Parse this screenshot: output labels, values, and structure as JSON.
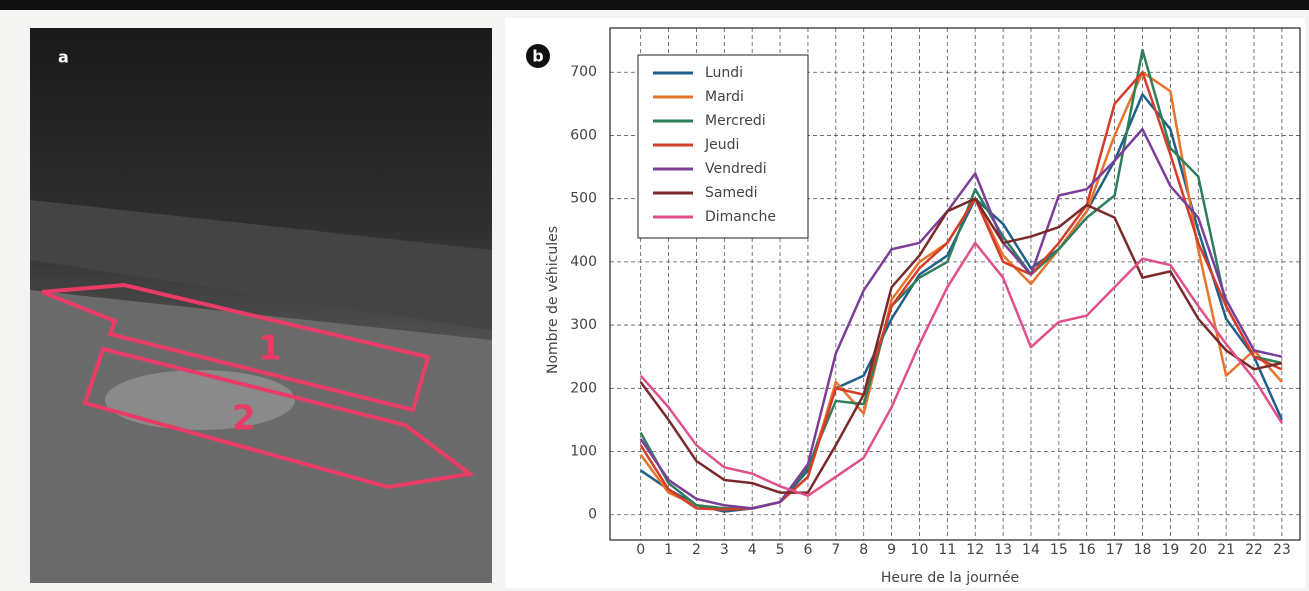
{
  "panel_a": {
    "label": "a",
    "zones": [
      "1",
      "2"
    ]
  },
  "chart_data": {
    "type": "line",
    "panel_label": "b",
    "x_label": "Heure de la journée",
    "y_label": "Nombre de véhicules",
    "x": [
      0,
      1,
      2,
      3,
      4,
      5,
      6,
      7,
      8,
      9,
      10,
      11,
      12,
      13,
      14,
      15,
      16,
      17,
      18,
      19,
      20,
      21,
      22,
      23
    ],
    "xlim": [
      -1.1,
      23.65
    ],
    "xticks": [
      0,
      1,
      2,
      3,
      4,
      5,
      6,
      7,
      8,
      9,
      10,
      11,
      12,
      13,
      14,
      15,
      16,
      17,
      18,
      19,
      20,
      21,
      22,
      23
    ],
    "ylim": [
      -40,
      770
    ],
    "yticks": [
      0,
      100,
      200,
      300,
      400,
      500,
      600,
      700
    ],
    "grid": true,
    "legend": "upper left",
    "series": [
      {
        "name": "Lundi",
        "color": "#1f5f8b",
        "values": [
          70,
          40,
          15,
          5,
          10,
          20,
          70,
          200,
          220,
          310,
          380,
          410,
          500,
          460,
          390,
          420,
          480,
          560,
          665,
          610,
          450,
          310,
          250,
          150
        ]
      },
      {
        "name": "Mardi",
        "color": "#e8732c",
        "values": [
          95,
          35,
          15,
          10,
          10,
          20,
          60,
          210,
          160,
          340,
          400,
          430,
          500,
          410,
          365,
          420,
          480,
          600,
          700,
          670,
          420,
          220,
          260,
          210
        ]
      },
      {
        "name": "Mercredi",
        "color": "#2e7d5b",
        "values": [
          130,
          50,
          15,
          10,
          10,
          20,
          75,
          180,
          175,
          330,
          375,
          400,
          515,
          440,
          380,
          420,
          470,
          505,
          735,
          580,
          535,
          330,
          250,
          240
        ]
      },
      {
        "name": "Jeudi",
        "color": "#d43d2a",
        "values": [
          110,
          40,
          10,
          8,
          10,
          20,
          60,
          200,
          190,
          330,
          390,
          430,
          500,
          400,
          380,
          430,
          490,
          650,
          700,
          570,
          430,
          330,
          250,
          230
        ]
      },
      {
        "name": "Vendredi",
        "color": "#7b3f98",
        "values": [
          120,
          55,
          25,
          15,
          10,
          20,
          80,
          255,
          355,
          420,
          430,
          480,
          540,
          430,
          380,
          505,
          515,
          560,
          610,
          520,
          470,
          340,
          260,
          250
        ]
      },
      {
        "name": "Samedi",
        "color": "#7a2a2a",
        "values": [
          210,
          150,
          85,
          55,
          50,
          35,
          35,
          110,
          190,
          360,
          410,
          480,
          500,
          430,
          440,
          455,
          490,
          470,
          375,
          385,
          310,
          260,
          230,
          240
        ]
      },
      {
        "name": "Dimanche",
        "color": "#e0508a",
        "values": [
          220,
          170,
          110,
          75,
          65,
          45,
          30,
          60,
          90,
          170,
          270,
          360,
          430,
          375,
          265,
          305,
          315,
          360,
          405,
          395,
          330,
          270,
          215,
          145
        ]
      }
    ]
  }
}
